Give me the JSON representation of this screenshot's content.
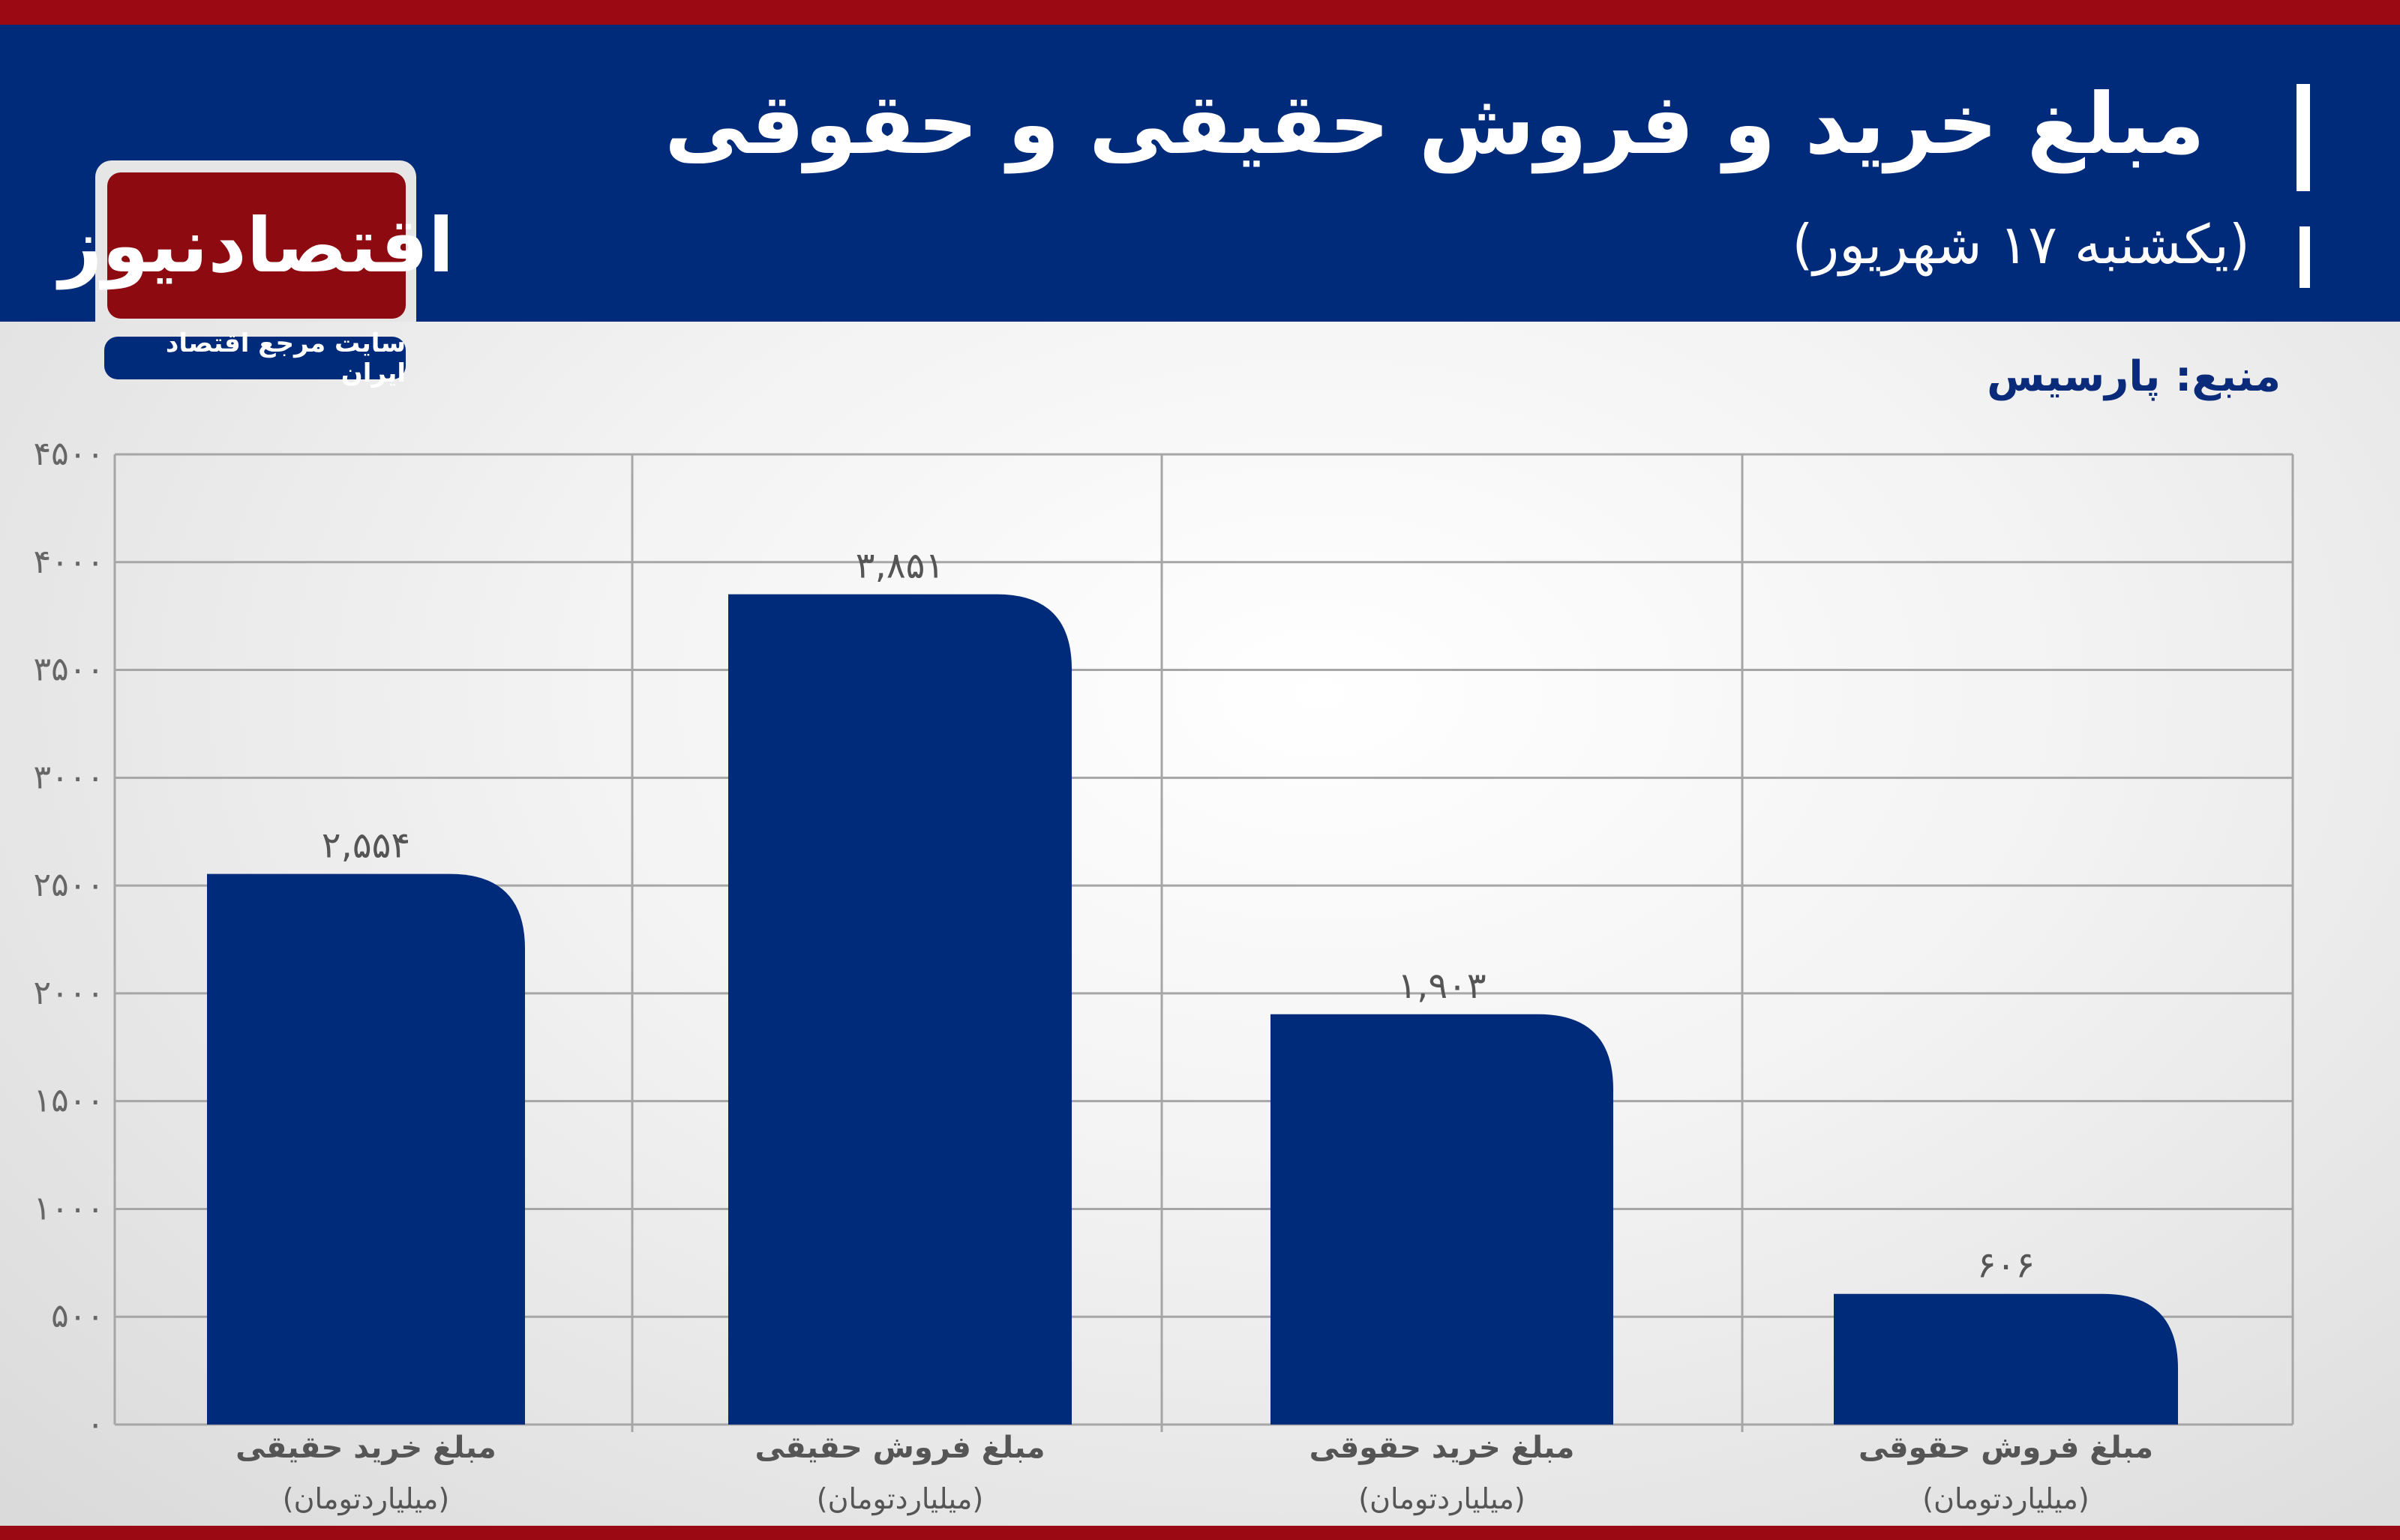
{
  "header": {
    "title": "مبلغ خرید و فروش حقیقی و حقوقی",
    "subtitle": "(یکشنبه ۱۷ شهریور)",
    "source": "منبع: پارسیس"
  },
  "logo": {
    "name": "اقتصادنیوز",
    "tagline": "سایت مرجع اقتصاد ایران"
  },
  "colors": {
    "bar": "#002a7a",
    "header": "#002a7a",
    "accent": "#9b0a12",
    "grid": "#a6a6a6"
  },
  "chart_data": {
    "type": "bar",
    "categories": [
      "مبلغ خرید حقیقی",
      "مبلغ فروش حقیقی",
      "مبلغ خرید حقوقی",
      "مبلغ فروش حقوقی"
    ],
    "category_unit": "(میلیاردتومان)",
    "values": [
      2554,
      3851,
      1903,
      606
    ],
    "value_labels": [
      "۲,۵۵۴",
      "۳,۸۵۱",
      "۱,۹۰۳",
      "۶۰۶"
    ],
    "ylim": [
      0,
      4500
    ],
    "yticks": [
      0,
      500,
      1000,
      1500,
      2000,
      2500,
      3000,
      3500,
      4000,
      4500
    ],
    "ytick_labels": [
      "۰",
      "۵۰۰",
      "۱۰۰۰",
      "۱۵۰۰",
      "۲۰۰۰",
      "۲۵۰۰",
      "۳۰۰۰",
      "۳۵۰۰",
      "۴۰۰۰",
      "۴۵۰۰"
    ],
    "grid": true,
    "legend": "none"
  }
}
